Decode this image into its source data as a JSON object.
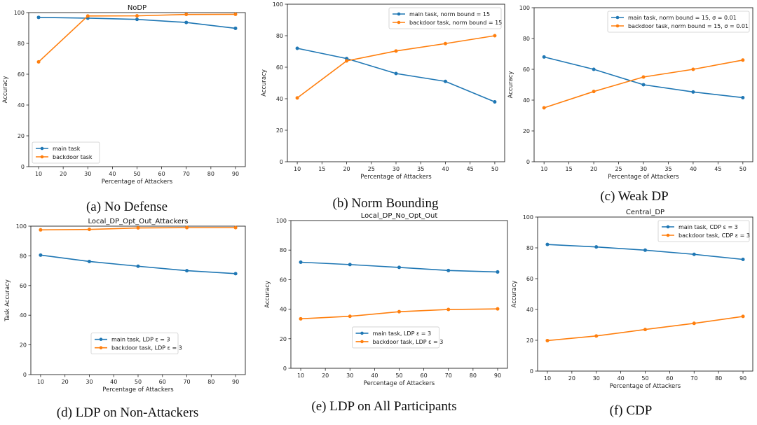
{
  "figure": {
    "title": "",
    "colors": {
      "main": "#1f77b4",
      "backdoor": "#ff7f0e"
    }
  },
  "chart_data": [
    {
      "id": "a",
      "type": "line",
      "title": "NoDP",
      "caption": "(a)  No Defense",
      "xlabel": "Percentage of Attackers",
      "ylabel": "Accuracy",
      "x": [
        10,
        30,
        50,
        70,
        90
      ],
      "xlim": [
        6.0,
        94.0
      ],
      "ylim": [
        0,
        100
      ],
      "xticks": [
        10,
        20,
        30,
        40,
        50,
        60,
        70,
        80,
        90
      ],
      "yticks": [
        0,
        20,
        40,
        60,
        80,
        100
      ],
      "legend": "lower-left",
      "series": [
        {
          "name": "main task",
          "values": [
            96.9,
            96.4,
            95.6,
            93.6,
            89.8
          ]
        },
        {
          "name": "backdoor task",
          "values": [
            68.0,
            97.8,
            97.9,
            98.8,
            98.9
          ]
        }
      ]
    },
    {
      "id": "b",
      "type": "line",
      "title": "",
      "caption": "(b)  Norm Bounding",
      "xlabel": "Percentage of Attackers",
      "ylabel": "Accuracy",
      "x": [
        10,
        20,
        30,
        40,
        50
      ],
      "xlim": [
        8.0,
        52.0
      ],
      "ylim": [
        0,
        100
      ],
      "xticks": [
        10,
        15,
        20,
        25,
        30,
        35,
        40,
        45,
        50
      ],
      "yticks": [
        0,
        20,
        40,
        60,
        80,
        100
      ],
      "legend": "upper-right",
      "series": [
        {
          "name": "main task, norm bound = 15",
          "values": [
            72.0,
            65.5,
            56.0,
            51.0,
            38.0
          ]
        },
        {
          "name": "backdoor task, norm bound = 15",
          "values": [
            40.5,
            64.0,
            70.3,
            75.0,
            80.0
          ]
        }
      ]
    },
    {
      "id": "c",
      "type": "line",
      "title": "",
      "caption": "(c)  Weak DP",
      "xlabel": "Percentage of Attackers",
      "ylabel": "Accuracy",
      "x": [
        10,
        20,
        30,
        40,
        50
      ],
      "xlim": [
        8.0,
        52.0
      ],
      "ylim": [
        0,
        100
      ],
      "xticks": [
        10,
        15,
        20,
        25,
        30,
        35,
        40,
        45,
        50
      ],
      "yticks": [
        0,
        20,
        40,
        60,
        80,
        100
      ],
      "legend": "upper-right",
      "series": [
        {
          "name": "main task, norm bound = 15, σ = 0.01",
          "values": [
            68.0,
            60.0,
            50.0,
            45.3,
            41.6
          ]
        },
        {
          "name": "backdoor task, norm bound = 15, σ = 0.01",
          "values": [
            35.0,
            45.6,
            55.0,
            60.0,
            66.0
          ]
        }
      ]
    },
    {
      "id": "d",
      "type": "line",
      "title": "Local_DP_Opt_Out_Attackers",
      "caption": "(d)  LDP on Non-Attackers",
      "xlabel": "Percentage of Attackers",
      "ylabel": "Task Accuracy",
      "x": [
        10,
        30,
        50,
        70,
        90
      ],
      "xlim": [
        6.0,
        94.0
      ],
      "ylim": [
        0,
        100
      ],
      "xticks": [
        10,
        20,
        30,
        40,
        50,
        60,
        70,
        80,
        90
      ],
      "yticks": [
        0,
        20,
        40,
        60,
        80,
        100
      ],
      "legend": "lower-center",
      "series": [
        {
          "name": "main task, LDP ε = 3",
          "values": [
            80.5,
            76.2,
            73.0,
            70.0,
            68.0
          ]
        },
        {
          "name": "backdoor task, LDP ε = 3",
          "values": [
            97.5,
            97.8,
            98.8,
            99.0,
            99.0
          ]
        }
      ]
    },
    {
      "id": "e",
      "type": "line",
      "title": "Local_DP_No_Opt_Out",
      "caption": "(e)  LDP on All Participants",
      "xlabel": "Percentage of Attackers",
      "ylabel": "Accuracy",
      "x": [
        10,
        30,
        50,
        70,
        90
      ],
      "xlim": [
        6.0,
        94.0
      ],
      "ylim": [
        0,
        100
      ],
      "xticks": [
        10,
        20,
        30,
        40,
        50,
        60,
        70,
        80,
        90
      ],
      "yticks": [
        0,
        20,
        40,
        60,
        80,
        100
      ],
      "legend": "lower-center",
      "series": [
        {
          "name": "main task, LDP ε = 3",
          "values": [
            71.8,
            70.2,
            68.3,
            66.2,
            65.2
          ]
        },
        {
          "name": "backdoor task, LDP ε = 3",
          "values": [
            33.5,
            35.2,
            38.3,
            39.8,
            40.2
          ]
        }
      ]
    },
    {
      "id": "f",
      "type": "line",
      "title": "Central_DP",
      "caption": "(f)  CDP",
      "xlabel": "Percentage of Attackers",
      "ylabel": "Accuracy",
      "x": [
        10,
        30,
        50,
        70,
        90
      ],
      "xlim": [
        6.0,
        94.0
      ],
      "ylim": [
        0,
        100
      ],
      "xticks": [
        10,
        20,
        30,
        40,
        50,
        60,
        70,
        80,
        90
      ],
      "yticks": [
        0,
        20,
        40,
        60,
        80,
        100
      ],
      "legend": "upper-right",
      "series": [
        {
          "name": "main task, CDP ε = 3",
          "values": [
            82.2,
            80.6,
            78.5,
            75.8,
            72.5
          ]
        },
        {
          "name": "backdoor task, CDP ε = 3",
          "values": [
            19.8,
            22.8,
            27.0,
            31.0,
            35.5
          ]
        }
      ]
    }
  ]
}
